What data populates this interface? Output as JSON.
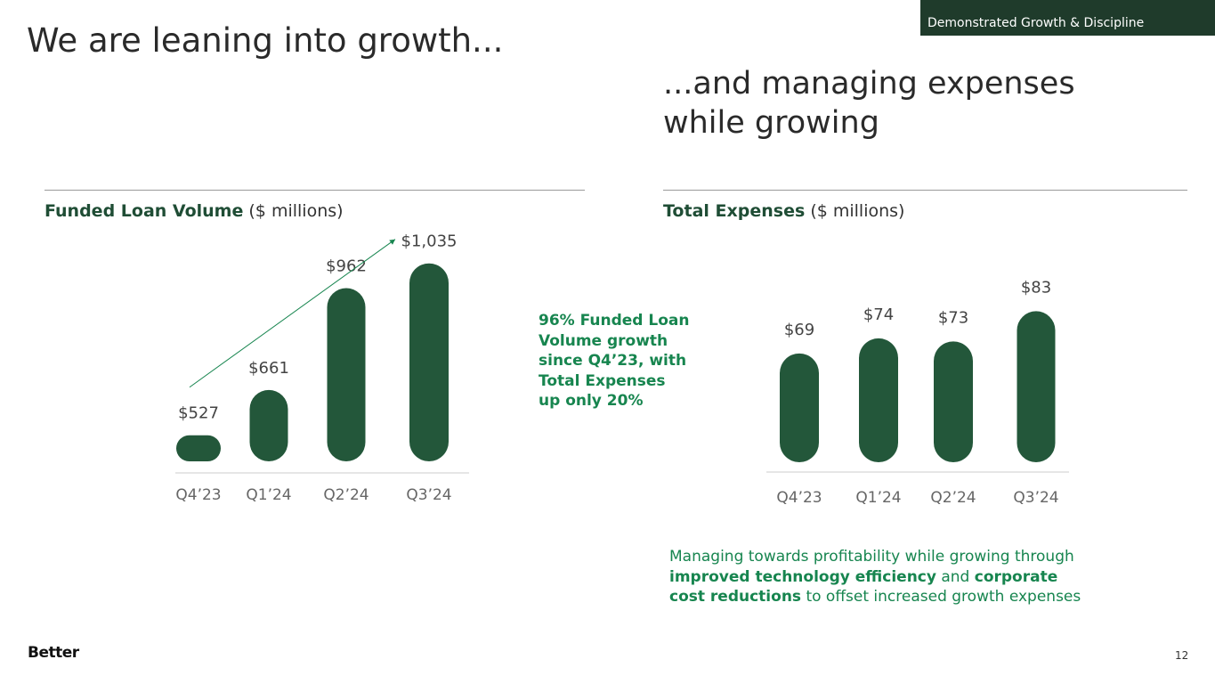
{
  "tag": "Demonstrated Growth & Discipline",
  "main_title": "We are leaning into growth...",
  "subtitle_line1": "...and managing expenses",
  "subtitle_line2": "while growing",
  "left_section": {
    "title_bold": "Funded Loan Volume",
    "title_unit": " ($ millions)"
  },
  "right_section": {
    "title_bold": "Total Expenses",
    "title_unit": " ($ millions)"
  },
  "callout": {
    "lines": [
      "96% Funded Loan",
      "Volume growth",
      "since Q4’23, with",
      "Total Expenses",
      "up only 20%"
    ]
  },
  "footnote": {
    "part1": "Managing towards profitability while growing through ",
    "bold1": "improved technology efficiency",
    "part2": " and ",
    "bold2": "corporate cost reductions",
    "part3": " to offset increased growth expenses"
  },
  "logo": "Better",
  "page_number": "12",
  "colors": {
    "bar": "#23573a",
    "accent_text": "#17854f",
    "tag_bg": "#1f3b2b",
    "axis": "#cccccc"
  },
  "chart_data": [
    {
      "type": "bar",
      "title": "Funded Loan Volume ($ millions)",
      "categories": [
        "Q4’23",
        "Q1’24",
        "Q2’24",
        "Q3’24"
      ],
      "values": [
        527,
        661,
        962,
        1035
      ],
      "labels": [
        "$527",
        "$661",
        "$962",
        "$1,035"
      ],
      "ylim": [
        450,
        1050
      ],
      "trend_arrow": true
    },
    {
      "type": "bar",
      "title": "Total Expenses ($ millions)",
      "categories": [
        "Q4’23",
        "Q1’24",
        "Q2’24",
        "Q3’24"
      ],
      "values": [
        69,
        74,
        73,
        83
      ],
      "labels": [
        "$69",
        "$74",
        "$73",
        "$83"
      ],
      "ylim": [
        33,
        84
      ]
    }
  ]
}
